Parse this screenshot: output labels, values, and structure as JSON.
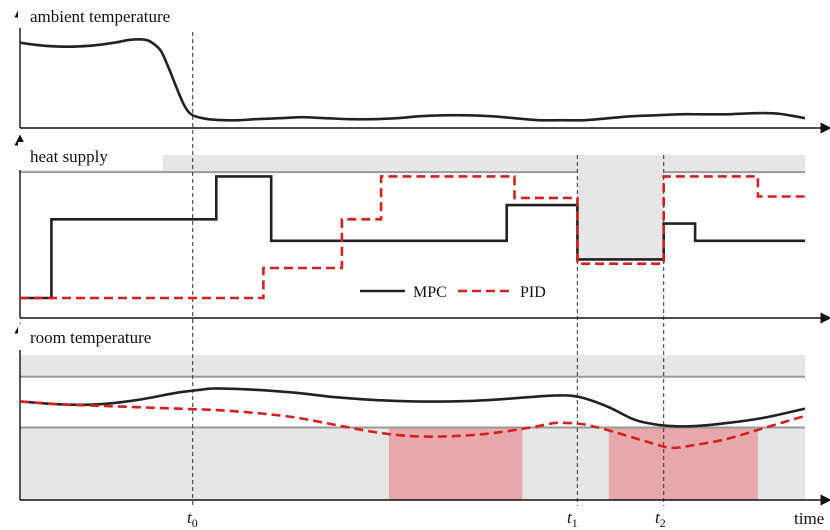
{
  "chart_data": [
    {
      "type": "line",
      "title": "ambient temperature",
      "xlabel": "time",
      "x_markers": [
        "t0"
      ],
      "series": [
        {
          "color": "#222222",
          "x": [
            0,
            3,
            6,
            9,
            12,
            14,
            16,
            17,
            18,
            19,
            20,
            21,
            22,
            24,
            26,
            28,
            30,
            33,
            36,
            39,
            42,
            45,
            48,
            51,
            54,
            57,
            60,
            63,
            66,
            69,
            72,
            75,
            78,
            81,
            84,
            87,
            90,
            93,
            96,
            98,
            100
          ],
          "values": [
            0.87,
            0.84,
            0.83,
            0.84,
            0.87,
            0.9,
            0.9,
            0.86,
            0.78,
            0.6,
            0.4,
            0.22,
            0.13,
            0.09,
            0.08,
            0.08,
            0.09,
            0.1,
            0.11,
            0.1,
            0.09,
            0.09,
            0.1,
            0.12,
            0.13,
            0.13,
            0.12,
            0.1,
            0.08,
            0.08,
            0.08,
            0.1,
            0.12,
            0.13,
            0.14,
            0.14,
            0.14,
            0.15,
            0.15,
            0.13,
            0.1
          ]
        }
      ]
    },
    {
      "type": "line",
      "title": "heat supply",
      "xlabel": "time",
      "x_markers": [
        "t1",
        "t2"
      ],
      "band": {
        "upper": 0.88,
        "unavailable_window": [
          "t1",
          "t2"
        ],
        "unavailable_level": 0.27
      },
      "series": [
        {
          "name": "MPC",
          "color": "#222222",
          "step": true,
          "x": [
            0,
            4,
            4,
            25,
            25,
            32,
            32,
            62,
            62,
            71,
            71,
            82,
            82,
            86,
            86,
            100
          ],
          "values": [
            0,
            0,
            0.55,
            0.55,
            0.85,
            0.85,
            0.4,
            0.4,
            0.65,
            0.65,
            0.27,
            0.27,
            0.52,
            0.52,
            0.4,
            0.4
          ]
        },
        {
          "name": "PID",
          "color": "#d62020",
          "step": true,
          "x": [
            0,
            31,
            31,
            41,
            41,
            46,
            46,
            63,
            63,
            71,
            71,
            82,
            82,
            94,
            94,
            100
          ],
          "values": [
            0,
            0,
            0.21,
            0.21,
            0.55,
            0.55,
            0.85,
            0.85,
            0.7,
            0.7,
            0.24,
            0.24,
            0.85,
            0.85,
            0.71,
            0.71
          ]
        }
      ]
    },
    {
      "type": "line",
      "title": "room temperature",
      "xlabel": "time",
      "x_tick_labels": [
        "t0",
        "t1",
        "t2",
        "time"
      ],
      "comfort_band": {
        "lower": 0.5,
        "upper": 0.85
      },
      "violations": [
        [
          47,
          64
        ],
        [
          75,
          94
        ]
      ],
      "series": [
        {
          "name": "MPC",
          "color": "#222222",
          "x": [
            0,
            5,
            10,
            15,
            20,
            23,
            25,
            30,
            35,
            40,
            45,
            50,
            55,
            60,
            65,
            68,
            70,
            72,
            75,
            78,
            80,
            83,
            86,
            90,
            95,
            100
          ],
          "values": [
            0.68,
            0.66,
            0.66,
            0.69,
            0.74,
            0.76,
            0.77,
            0.76,
            0.74,
            0.71,
            0.69,
            0.68,
            0.68,
            0.69,
            0.71,
            0.72,
            0.72,
            0.7,
            0.64,
            0.56,
            0.53,
            0.51,
            0.51,
            0.53,
            0.57,
            0.63
          ]
        },
        {
          "name": "PID",
          "color": "#d62020",
          "x": [
            0,
            5,
            10,
            15,
            20,
            25,
            30,
            35,
            40,
            45,
            50,
            55,
            60,
            65,
            68,
            70,
            72,
            75,
            80,
            83,
            86,
            90,
            95,
            100
          ],
          "values": [
            0.68,
            0.66,
            0.65,
            0.64,
            0.63,
            0.62,
            0.6,
            0.57,
            0.52,
            0.47,
            0.44,
            0.44,
            0.46,
            0.5,
            0.53,
            0.53,
            0.52,
            0.48,
            0.4,
            0.36,
            0.38,
            0.42,
            0.5,
            0.58
          ]
        }
      ]
    }
  ],
  "panel_titles": [
    "ambient temperature",
    "heat supply",
    "room temperature"
  ],
  "legend": {
    "mpc": "MPC",
    "pid": "PID"
  },
  "axis": {
    "time": "time",
    "t0": "t",
    "t0_sub": "0",
    "t1": "t",
    "t1_sub": "1",
    "t2": "t",
    "t2_sub": "2"
  }
}
